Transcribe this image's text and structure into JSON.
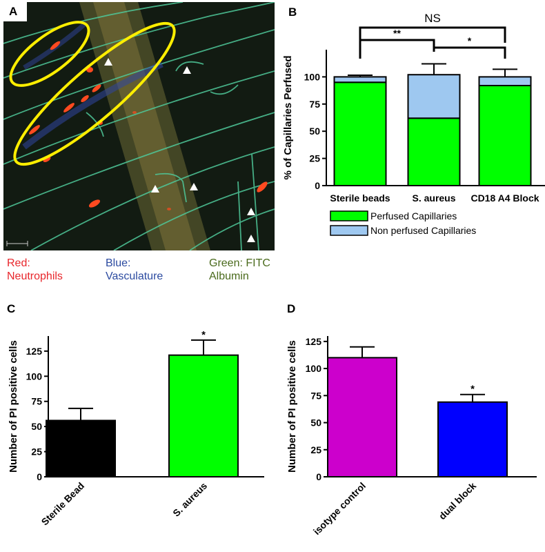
{
  "panel_A": {
    "letter": "A",
    "legend": [
      {
        "text": "Red:\nNeutrophils",
        "color": "#e8262b"
      },
      {
        "text": "Blue:\nVasculature",
        "color": "#2b4aa0"
      },
      {
        "text": "Green: FITC\nAlbumin",
        "color": "#4a6a1c"
      }
    ],
    "colors": {
      "background": "#121b12",
      "vessel": "#4fc89a",
      "neutrophil": "#ff4a20",
      "ellipse": "#ffee00",
      "arrowhead": "#ffffff"
    }
  },
  "chart_data": [
    {
      "panel": "B",
      "type": "bar",
      "stacked": true,
      "categories": [
        "Sterile beads",
        "S. aureus",
        "CD18 A4 Block"
      ],
      "series": [
        {
          "name": "Perfused Capillaries",
          "values": [
            95,
            62,
            92
          ],
          "color": "#00ff00"
        },
        {
          "name": "Non perfused Capillaries",
          "values": [
            5,
            40,
            8
          ],
          "color": "#9ec8f0"
        }
      ],
      "error_bars": [
        1.5,
        10,
        7
      ],
      "ylabel": "% of Capillaries Perfused",
      "xlabel": "",
      "ylim": [
        0,
        125
      ],
      "yticks": [
        0,
        25,
        50,
        75,
        100
      ],
      "significance": [
        {
          "from": 0,
          "to": 2,
          "label": "NS"
        },
        {
          "from": 0,
          "to": 1,
          "label": "**"
        },
        {
          "from": 1,
          "to": 2,
          "label": "*"
        }
      ],
      "legend_position": "bottom"
    },
    {
      "panel": "C",
      "type": "bar",
      "categories": [
        "Sterile Bead",
        "S. aureus"
      ],
      "values": [
        56,
        121
      ],
      "error_bars": [
        12,
        15
      ],
      "colors": [
        "#000000",
        "#00ff00"
      ],
      "annotations": [
        "",
        "*"
      ],
      "ylabel": "Number of PI positive cells",
      "xlabel": "",
      "ylim": [
        0,
        140
      ],
      "yticks": [
        0,
        25,
        50,
        75,
        100,
        125
      ]
    },
    {
      "panel": "D",
      "type": "bar",
      "categories": [
        "isotype control",
        "dual block"
      ],
      "values": [
        110,
        69
      ],
      "error_bars": [
        10,
        7
      ],
      "colors": [
        "#cc00cc",
        "#0000ff"
      ],
      "annotations": [
        "",
        "*"
      ],
      "ylabel": "Number of PI positive cells",
      "xlabel": "",
      "ylim": [
        0,
        130
      ],
      "yticks": [
        0,
        25,
        50,
        75,
        100,
        125
      ]
    }
  ]
}
